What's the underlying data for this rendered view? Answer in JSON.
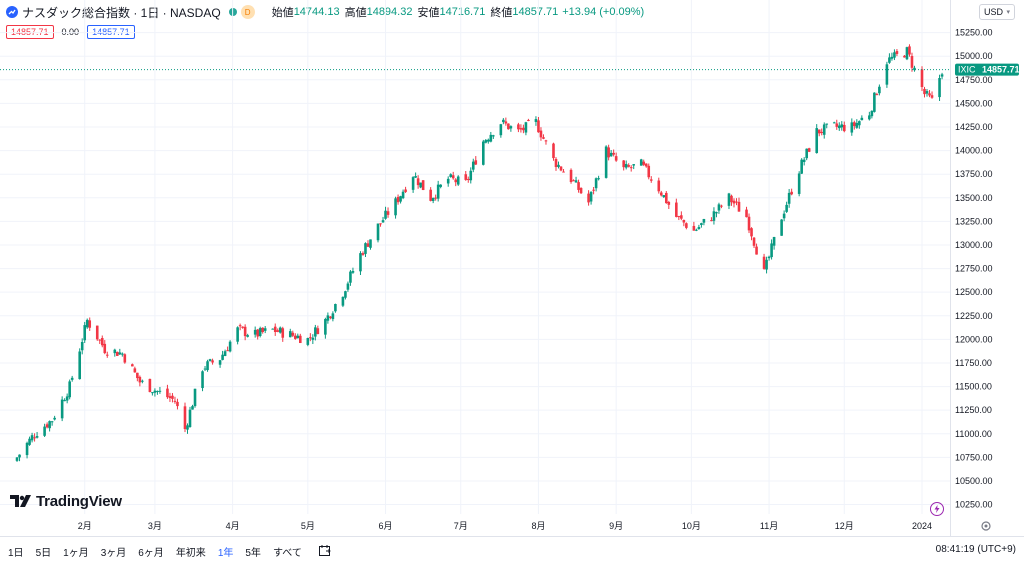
{
  "header": {
    "symbol_title": "ナスダック総合指数 · 1日 · NASDAQ",
    "badge": "D",
    "open_label": "始値",
    "open_value": "14744.13",
    "high_label": "高値",
    "high_value": "14894.32",
    "low_label": "安値",
    "low_value": "14716.71",
    "close_label": "終値",
    "close_value": "14857.71",
    "change": "+13.94 (+0.09%)",
    "bid": "14857.71",
    "spread": "0.00",
    "ask": "14857.71",
    "currency": "USD"
  },
  "price_tag": {
    "symbol": "IXIC",
    "value": "14857.71"
  },
  "logo_text": "TradingView",
  "timeframes": [
    "1日",
    "5日",
    "1ヶ月",
    "3ヶ月",
    "6ヶ月",
    "年初来",
    "1年",
    "5年",
    "すべて"
  ],
  "active_timeframe": "1年",
  "clock": "08:41:19 (UTC+9)",
  "colors": {
    "up": "#089981",
    "down": "#f23645",
    "accent": "#2962ff"
  },
  "chart_data": {
    "type": "candlestick",
    "xlabel": "",
    "ylabel": "",
    "ylim": [
      10150,
      15320
    ],
    "y_ticks": [
      10250,
      10500,
      10750,
      11000,
      11250,
      11500,
      11750,
      12000,
      12250,
      12500,
      12750,
      13000,
      13250,
      13500,
      13750,
      14000,
      14250,
      14500,
      14750,
      15000,
      15250
    ],
    "y_tick_labels": [
      "10250.00",
      "10500.00",
      "10750.00",
      "11000.00",
      "11250.00",
      "11500.00",
      "11750.00",
      "12000.00",
      "12250.00",
      "12500.00",
      "12750.00",
      "13000.00",
      "13250.00",
      "13500.00",
      "13750.00",
      "14000.00",
      "14250.00",
      "14500.00",
      "14750.00",
      "15000.00",
      "15250.00"
    ],
    "x_ticks": [
      {
        "label": "2月",
        "date": "2023-02-01"
      },
      {
        "label": "3月",
        "date": "2023-03-01"
      },
      {
        "label": "4月",
        "date": "2023-04-01"
      },
      {
        "label": "5月",
        "date": "2023-05-01"
      },
      {
        "label": "6月",
        "date": "2023-06-01"
      },
      {
        "label": "7月",
        "date": "2023-07-01"
      },
      {
        "label": "8月",
        "date": "2023-08-01"
      },
      {
        "label": "9月",
        "date": "2023-09-01"
      },
      {
        "label": "10月",
        "date": "2023-10-01"
      },
      {
        "label": "11月",
        "date": "2023-11-01"
      },
      {
        "label": "12月",
        "date": "2023-12-01"
      },
      {
        "label": "2024",
        "date": "2024-01-01"
      }
    ],
    "last_price": 14857.71,
    "series": [
      {
        "date": "2023-01-05",
        "c": 10750
      },
      {
        "date": "2023-01-12",
        "c": 11000
      },
      {
        "date": "2023-01-19",
        "c": 11150
      },
      {
        "date": "2023-01-26",
        "c": 11500
      },
      {
        "date": "2023-02-02",
        "c": 12200
      },
      {
        "date": "2023-02-09",
        "c": 11900
      },
      {
        "date": "2023-02-16",
        "c": 11850
      },
      {
        "date": "2023-02-23",
        "c": 11550
      },
      {
        "date": "2023-03-02",
        "c": 11450
      },
      {
        "date": "2023-03-09",
        "c": 11350
      },
      {
        "date": "2023-03-13",
        "c": 11050
      },
      {
        "date": "2023-03-20",
        "c": 11700
      },
      {
        "date": "2023-03-27",
        "c": 11800
      },
      {
        "date": "2023-04-03",
        "c": 12100
      },
      {
        "date": "2023-04-10",
        "c": 12050
      },
      {
        "date": "2023-04-17",
        "c": 12100
      },
      {
        "date": "2023-04-24",
        "c": 12050
      },
      {
        "date": "2023-05-01",
        "c": 12000
      },
      {
        "date": "2023-05-08",
        "c": 12200
      },
      {
        "date": "2023-05-15",
        "c": 12500
      },
      {
        "date": "2023-05-22",
        "c": 12900
      },
      {
        "date": "2023-05-29",
        "c": 13200
      },
      {
        "date": "2023-06-05",
        "c": 13450
      },
      {
        "date": "2023-06-12",
        "c": 13750
      },
      {
        "date": "2023-06-19",
        "c": 13500
      },
      {
        "date": "2023-06-26",
        "c": 13700
      },
      {
        "date": "2023-07-03",
        "c": 13650
      },
      {
        "date": "2023-07-10",
        "c": 14100
      },
      {
        "date": "2023-07-17",
        "c": 14300
      },
      {
        "date": "2023-07-24",
        "c": 14200
      },
      {
        "date": "2023-07-31",
        "c": 14300
      },
      {
        "date": "2023-08-07",
        "c": 13900
      },
      {
        "date": "2023-08-14",
        "c": 13700
      },
      {
        "date": "2023-08-21",
        "c": 13450
      },
      {
        "date": "2023-08-28",
        "c": 14000
      },
      {
        "date": "2023-09-04",
        "c": 13800
      },
      {
        "date": "2023-09-11",
        "c": 13850
      },
      {
        "date": "2023-09-18",
        "c": 13600
      },
      {
        "date": "2023-09-25",
        "c": 13300
      },
      {
        "date": "2023-10-02",
        "c": 13150
      },
      {
        "date": "2023-10-09",
        "c": 13300
      },
      {
        "date": "2023-10-16",
        "c": 13500
      },
      {
        "date": "2023-10-23",
        "c": 13300
      },
      {
        "date": "2023-10-30",
        "c": 12700
      },
      {
        "date": "2023-11-06",
        "c": 13300
      },
      {
        "date": "2023-11-13",
        "c": 13800
      },
      {
        "date": "2023-11-20",
        "c": 14200
      },
      {
        "date": "2023-11-27",
        "c": 14250
      },
      {
        "date": "2023-12-04",
        "c": 14250
      },
      {
        "date": "2023-12-11",
        "c": 14400
      },
      {
        "date": "2023-12-18",
        "c": 14950
      },
      {
        "date": "2023-12-26",
        "c": 15050
      },
      {
        "date": "2024-01-02",
        "c": 14600
      },
      {
        "date": "2024-01-05",
        "c": 14524
      },
      {
        "date": "2024-01-09",
        "c": 14857.71
      }
    ]
  }
}
